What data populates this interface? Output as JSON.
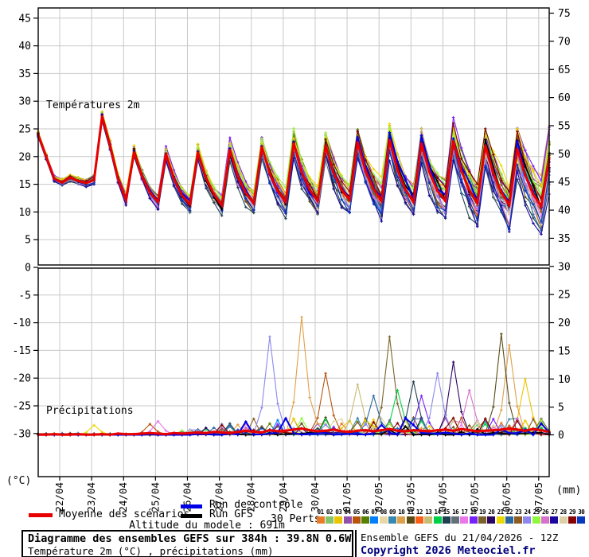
{
  "title_block": {
    "title": "Diagramme des ensembles GEFS sur 384h : 39.8N 0.6W",
    "subtitle": "Température 2m (°C) , précipitations (mm)",
    "run_info": "Ensemble GEFS du 21/04/2026 - 12Z",
    "copyright": "Copyright 2026 Meteociel.fr",
    "copyright_color": "#00007c",
    "altitude": "Altitude du modele : 691m"
  },
  "legend": {
    "mean": {
      "label": "Moyenne des scénarios",
      "color": "#e80000"
    },
    "control": {
      "label": "Run de contrôle",
      "color": "#0000e8"
    },
    "gfs": {
      "label": "Run GFS",
      "color": "#000000"
    },
    "perts": "30 Perts."
  },
  "panels": {
    "temperature_label": "Températures 2m",
    "precipitation_label": "Précipitations",
    "left_unit": "(°C)",
    "right_unit": "(mm)"
  },
  "axes": {
    "left_ticks": [
      45,
      40,
      35,
      30,
      25,
      20,
      15,
      10,
      5,
      0,
      -5,
      -10,
      -15,
      -20,
      -25,
      -30
    ],
    "right_ticks": [
      75,
      70,
      65,
      60,
      55,
      50,
      45,
      40,
      35,
      30,
      25,
      20,
      15,
      10,
      5,
      0
    ],
    "dates": [
      "22/04",
      "23/04",
      "24/04",
      "25/04",
      "26/04",
      "27/04",
      "28/04",
      "29/04",
      "30/04",
      "01/05",
      "02/05",
      "03/05",
      "04/05",
      "05/05",
      "06/05",
      "07/05"
    ],
    "grid_color": "#c8c8c8"
  },
  "members": [
    {
      "num": "01",
      "color": "#e87c28"
    },
    {
      "num": "02",
      "color": "#84c46c"
    },
    {
      "num": "03",
      "color": "#ecc400"
    },
    {
      "num": "04",
      "color": "#9450a8"
    },
    {
      "num": "05",
      "color": "#b85410"
    },
    {
      "num": "06",
      "color": "#588000"
    },
    {
      "num": "07",
      "color": "#0080ff"
    },
    {
      "num": "08",
      "color": "#e8d8a8"
    },
    {
      "num": "09",
      "color": "#3888b0"
    },
    {
      "num": "10",
      "color": "#e0a048"
    },
    {
      "num": "11",
      "color": "#584c14"
    },
    {
      "num": "12",
      "color": "#f86018"
    },
    {
      "num": "13",
      "color": "#c8bc74"
    },
    {
      "num": "14",
      "color": "#00d048"
    },
    {
      "num": "15",
      "color": "#1e4050"
    },
    {
      "num": "16",
      "color": "#647078"
    },
    {
      "num": "17",
      "color": "#e878e8"
    },
    {
      "num": "18",
      "color": "#7820f8"
    },
    {
      "num": "19",
      "color": "#7a6228"
    },
    {
      "num": "20",
      "color": "#2c0464"
    },
    {
      "num": "21",
      "color": "#ecd800"
    },
    {
      "num": "22",
      "color": "#2868a0"
    },
    {
      "num": "23",
      "color": "#8c5c20"
    },
    {
      "num": "24",
      "color": "#8c88ec"
    },
    {
      "num": "25",
      "color": "#90f83c"
    },
    {
      "num": "26",
      "color": "#d870cc"
    },
    {
      "num": "27",
      "color": "#1c089c"
    },
    {
      "num": "28",
      "color": "#dcd0a8"
    },
    {
      "num": "29",
      "color": "#880000"
    },
    {
      "num": "30",
      "color": "#0838c0"
    }
  ],
  "chart_data": {
    "type": "line",
    "title": "Diagramme des ensembles GEFS sur 384h : 39.8N 0.6W",
    "x_start": "21/04 12Z",
    "x_end": "07/05 12Z",
    "x_step_hours": 6,
    "x_tick_labels": [
      "22/04",
      "23/04",
      "24/04",
      "25/04",
      "26/04",
      "27/04",
      "28/04",
      "29/04",
      "30/04",
      "01/05",
      "02/05",
      "03/05",
      "04/05",
      "05/05",
      "06/05",
      "07/05"
    ],
    "panel_temperature": {
      "label": "Températures 2m",
      "unit": "°C",
      "ylim": [
        0,
        47
      ],
      "grid_step": 5
    },
    "panel_precipitation": {
      "label": "Précipitations",
      "unit": "mm",
      "ylim": [
        0,
        37
      ],
      "grid_step": 5
    },
    "temp_mean": [
      24,
      20,
      16,
      15.3,
      16.2,
      15.6,
      15.2,
      15.8,
      27.3,
      22,
      16,
      12.2,
      20.8,
      16.5,
      13.5,
      11.8,
      20.5,
      16,
      13,
      11.4,
      20.8,
      16.2,
      13.2,
      11.2,
      21.2,
      16.5,
      13.4,
      11.6,
      21.8,
      17,
      13.8,
      11.8,
      22.4,
      17.2,
      14,
      12,
      22,
      17,
      14,
      12.2,
      22.6,
      17.4,
      14.2,
      12,
      23,
      17.6,
      14,
      11.8,
      22.4,
      17.2,
      13.8,
      12,
      22.8,
      17.4,
      14,
      11.6,
      22,
      17,
      13.6,
      11.2,
      21.4,
      16.6,
      13.2,
      11,
      19.8
    ],
    "precip_mean": [
      0.1,
      0.1,
      0.2,
      0.1,
      0.1,
      0.2,
      0.1,
      0.1,
      0.2,
      0.1,
      0.3,
      0.2,
      0.2,
      0.3,
      0.4,
      0.3,
      0.2,
      0.4,
      0.3,
      0.4,
      0.5,
      0.4,
      0.6,
      0.5,
      0.4,
      0.6,
      0.8,
      0.6,
      0.5,
      0.9,
      0.7,
      0.8,
      1.0,
      1.2,
      0.9,
      0.7,
      0.8,
      1.0,
      0.7,
      0.6,
      0.8,
      0.9,
      0.7,
      0.9,
      1.1,
      0.8,
      0.7,
      0.9,
      0.8,
      0.7,
      0.9,
      1.0,
      0.8,
      1.1,
      0.9,
      0.7,
      0.8,
      0.9,
      1.0,
      1.2,
      1.0,
      0.8,
      1.1,
      0.9,
      0.6
    ],
    "ensemble_count": 30,
    "temp_spread_end_degC": 5,
    "precip_spikes": [
      {
        "member": 21,
        "t": 7,
        "mm": 1.8
      },
      {
        "member": 5,
        "t": 14,
        "mm": 2
      },
      {
        "member": 17,
        "t": 15,
        "mm": 2.5
      },
      {
        "member": 24,
        "t": 29,
        "mm": 17.5
      },
      {
        "member": 10,
        "t": 33,
        "mm": 21
      },
      {
        "member": 5,
        "t": 36,
        "mm": 11
      },
      {
        "member": 13,
        "t": 40,
        "mm": 9
      },
      {
        "member": 22,
        "t": 42,
        "mm": 7
      },
      {
        "member": 19,
        "t": 44,
        "mm": 17.5
      },
      {
        "member": 14,
        "t": 45,
        "mm": 8
      },
      {
        "member": 15,
        "t": 47,
        "mm": 9.5
      },
      {
        "member": 18,
        "t": 48,
        "mm": 7
      },
      {
        "member": 24,
        "t": 50,
        "mm": 11
      },
      {
        "member": 20,
        "t": 52,
        "mm": 13
      },
      {
        "member": 26,
        "t": 54,
        "mm": 8
      },
      {
        "member": 11,
        "t": 58,
        "mm": 18
      },
      {
        "member": 10,
        "t": 59,
        "mm": 16
      },
      {
        "member": 3,
        "t": 61,
        "mm": 10
      }
    ]
  }
}
